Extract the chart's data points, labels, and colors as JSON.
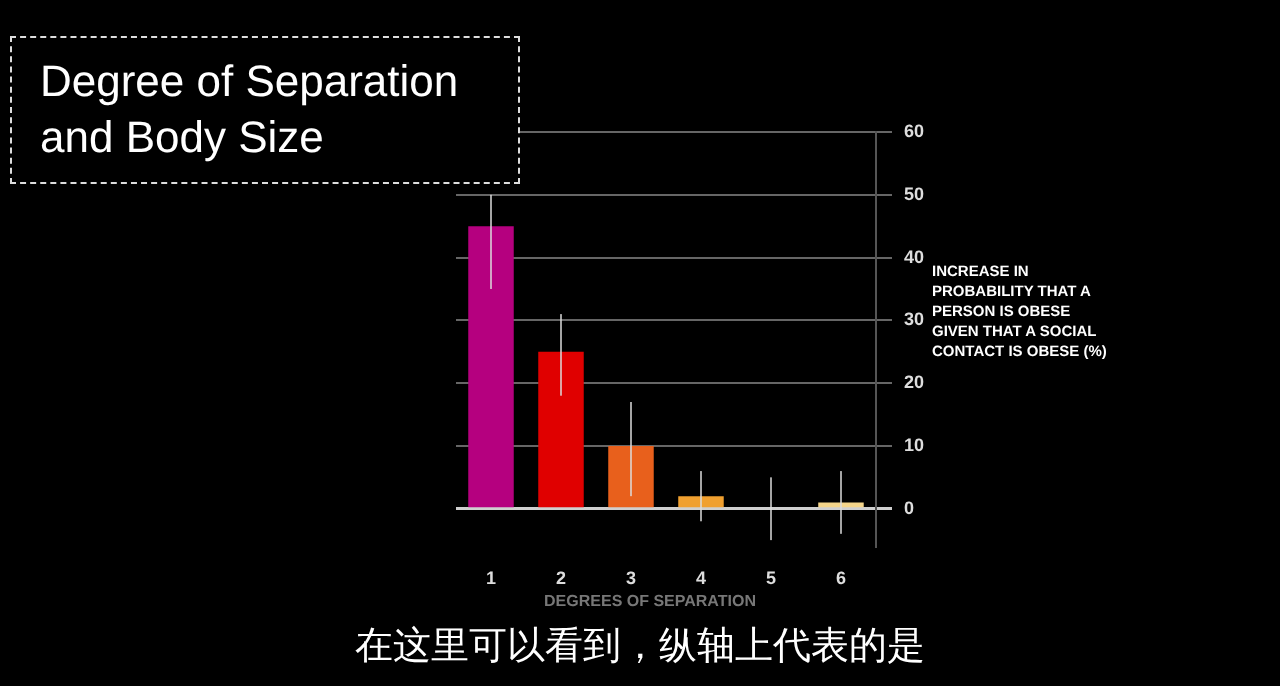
{
  "chart_data": {
    "type": "bar",
    "title": "Degree of Separation and Body Size",
    "xlabel": "DEGREES OF SEPARATION",
    "ylabel": "INCREASE IN PROBABILITY THAT A PERSON IS OBESE GIVEN THAT A SOCIAL CONTACT IS OBESE (%)",
    "annotations": [
      "在这里可以看到，纵轴上代表的是"
    ],
    "categories": [
      "1",
      "2",
      "3",
      "4",
      "5",
      "6"
    ],
    "values": [
      45,
      25,
      10,
      2,
      0,
      1
    ],
    "colors": [
      "#b5007f",
      "#e00000",
      "#e8601c",
      "#f0a030",
      "#f0c060",
      "#f5d58a"
    ],
    "errors": [
      [
        35,
        50
      ],
      [
        18,
        31
      ],
      [
        2,
        17
      ],
      [
        -2,
        6
      ],
      [
        -5,
        5
      ],
      [
        -4,
        6
      ]
    ],
    "ylim": [
      -6,
      60
    ],
    "yticks": [
      0,
      10,
      20,
      30,
      40,
      50,
      60
    ],
    "grid": "y",
    "legend": false
  }
}
